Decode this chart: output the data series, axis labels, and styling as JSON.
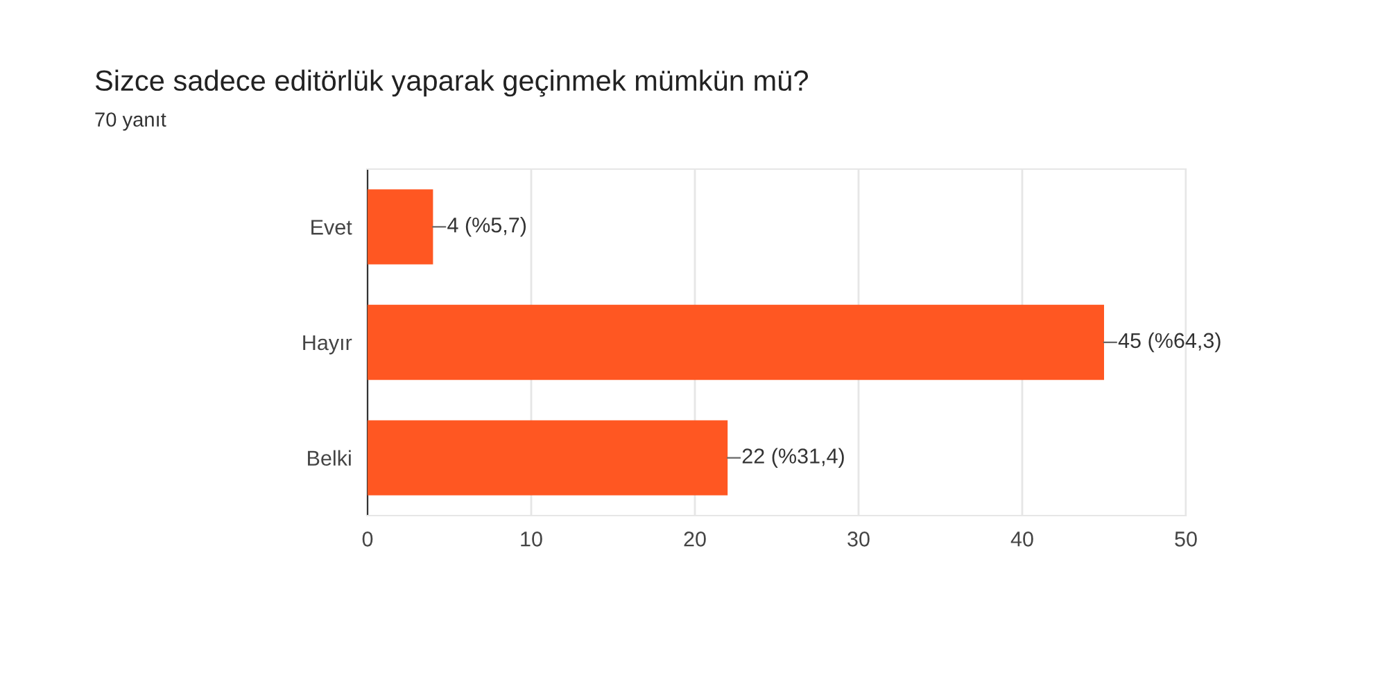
{
  "chart_data": {
    "type": "bar",
    "orientation": "horizontal",
    "title": "Sizce sadece editörlük yaparak geçinmek mümkün mü?",
    "subtitle": "70 yanıt",
    "categories": [
      "Evet",
      "Hayır",
      "Belki"
    ],
    "values": [
      4,
      45,
      22
    ],
    "color": "#ff5722",
    "value_labels": [
      "4 (%5,7)",
      "45 (%64,3)",
      "22 (%31,4)"
    ],
    "xlim": [
      0,
      50
    ],
    "xticks": [
      0,
      10,
      20,
      30,
      40,
      50
    ],
    "grid": "x"
  }
}
